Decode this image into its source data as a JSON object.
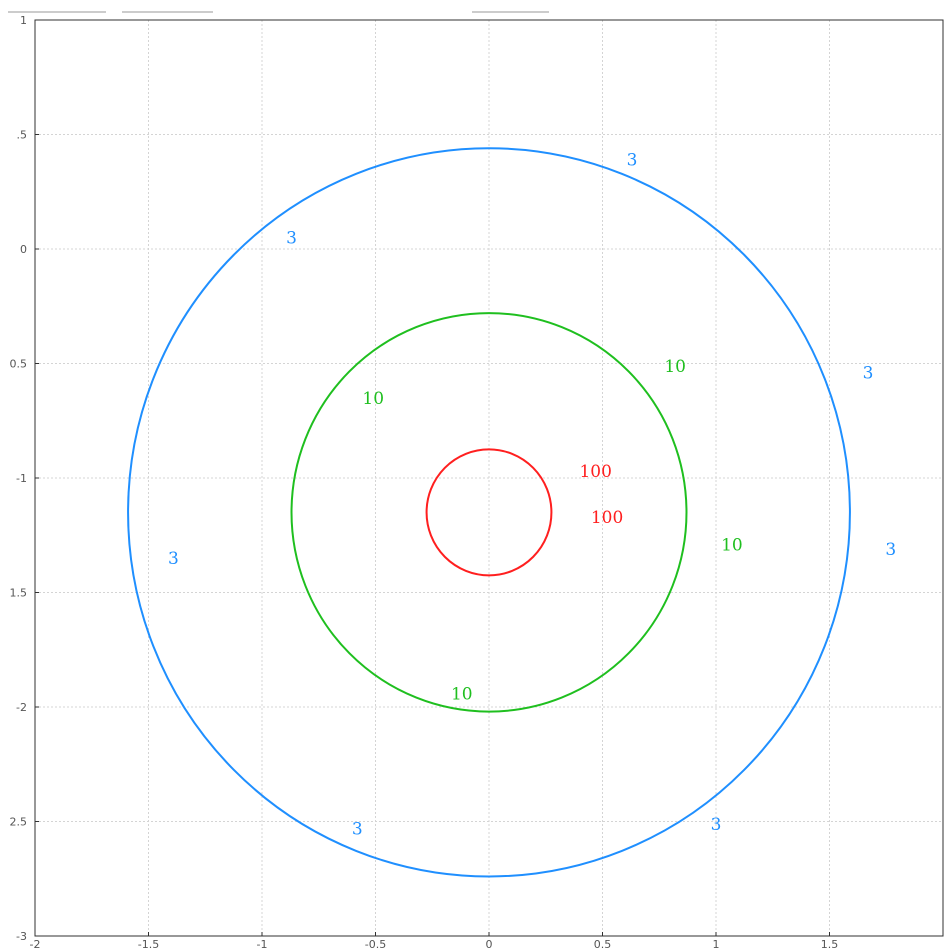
{
  "chart_data": {
    "type": "contour",
    "title": "",
    "xlabel": "",
    "ylabel": "",
    "xlim": [
      -2,
      2
    ],
    "ylim": [
      -3,
      1
    ],
    "grid": true,
    "x_ticks": [
      -2,
      -1.5,
      -1,
      -0.5,
      0,
      0.5,
      1,
      1.5
    ],
    "y_ticks": [
      1,
      0.5,
      0,
      -0.5,
      -1,
      -1.5,
      -2,
      -2.5,
      -3
    ],
    "x_tick_labels": [
      "-2",
      "-1.5",
      "-1",
      "-0.5",
      "0",
      "0.5",
      "1",
      "1.5"
    ],
    "y_tick_labels": [
      "1",
      ".5",
      "0",
      "0.5",
      "-1",
      "1.5",
      "-2",
      "2.5",
      "-3"
    ],
    "series": [
      {
        "level": "3",
        "color": "#1f8fff",
        "center": [
          0,
          -1.15
        ],
        "radius": 1.59
      },
      {
        "level": "10",
        "color": "#1fbf1f",
        "center": [
          0,
          -1.15
        ],
        "radius": 0.87
      },
      {
        "level": "100",
        "color": "#ff1f1f",
        "center": [
          0,
          -1.15
        ],
        "radius": 0.275
      }
    ],
    "contour_labels": [
      {
        "text": "3",
        "x": 0.63,
        "y": 0.39,
        "color": "#1f8fff"
      },
      {
        "text": "3",
        "x": -0.87,
        "y": 0.05,
        "color": "#1f8fff"
      },
      {
        "text": "3",
        "x": 1.67,
        "y": -0.54,
        "color": "#1f8fff"
      },
      {
        "text": "3",
        "x": -1.39,
        "y": -1.35,
        "color": "#1f8fff"
      },
      {
        "text": "3",
        "x": 1.77,
        "y": -1.31,
        "color": "#1f8fff"
      },
      {
        "text": "3",
        "x": -0.58,
        "y": -2.53,
        "color": "#1f8fff"
      },
      {
        "text": "3",
        "x": 1.0,
        "y": -2.51,
        "color": "#1f8fff"
      },
      {
        "text": "10",
        "x": 0.82,
        "y": -0.51,
        "color": "#1fbf1f"
      },
      {
        "text": "10",
        "x": -0.51,
        "y": -0.65,
        "color": "#1fbf1f"
      },
      {
        "text": "10",
        "x": 1.07,
        "y": -1.29,
        "color": "#1fbf1f"
      },
      {
        "text": "10",
        "x": -0.12,
        "y": -1.94,
        "color": "#1fbf1f"
      },
      {
        "text": "100",
        "x": 0.47,
        "y": -0.97,
        "color": "#ff1f1f"
      },
      {
        "text": "100",
        "x": 0.52,
        "y": -1.17,
        "color": "#ff1f1f"
      }
    ]
  }
}
